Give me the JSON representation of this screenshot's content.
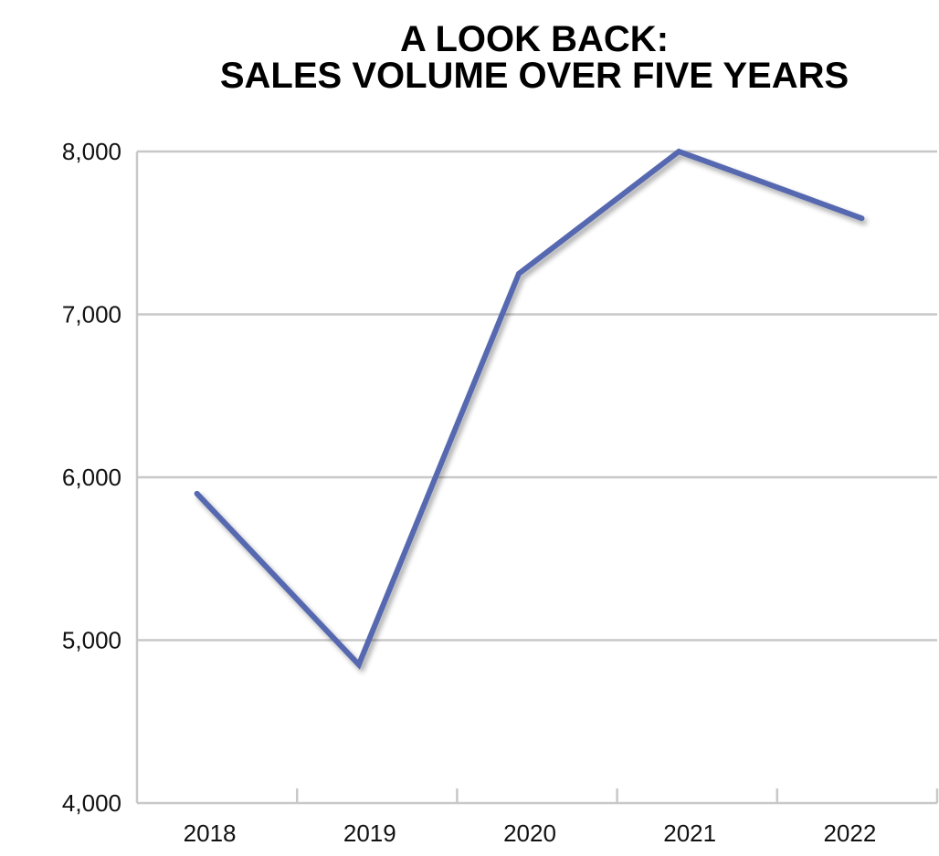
{
  "chart_data": {
    "type": "line",
    "title": [
      "A LOOK BACK:",
      "SALES VOLUME OVER FIVE YEARS"
    ],
    "xlabel": "",
    "ylabel": "",
    "categories": [
      "2018",
      "2019",
      "2020",
      "2021",
      "2022"
    ],
    "series": [
      {
        "values": [
          5900,
          4850,
          7250,
          8000,
          7590
        ],
        "color": "#5468b0"
      }
    ],
    "ylim": [
      4000,
      8000
    ],
    "yticks": [
      4000,
      5000,
      6000,
      7000,
      8000
    ],
    "ytick_labels": [
      "4,000",
      "5,000",
      "6,000",
      "7,000",
      "8,000"
    ],
    "grid": true,
    "legend": "none"
  }
}
